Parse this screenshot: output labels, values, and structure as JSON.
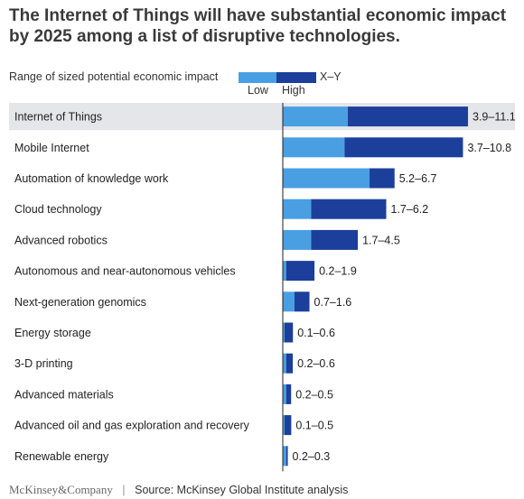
{
  "header": {
    "title": "The Internet of Things will have substantial economic impact by 2025 among a list of disruptive technologies."
  },
  "legend": {
    "label": "Range of sized potential economic impact",
    "low": "Low",
    "high": "High",
    "range_label": "X–Y"
  },
  "footer": {
    "brand": "McKinsey&Company",
    "separator": "|",
    "source": "Source: McKinsey Global Institute analysis"
  },
  "colors": {
    "low": "#4a9fe3",
    "high": "#1b3f9a",
    "highlight_row": "#e5e6ea",
    "axis": "#222222"
  },
  "chart_data": {
    "type": "bar",
    "orientation": "horizontal",
    "stacked": true,
    "xlim": [
      0,
      11.5
    ],
    "grid": false,
    "legend_position": "top-left",
    "highlighted_category": "Internet of Things",
    "categories": [
      "Internet of Things",
      "Mobile Internet",
      "Automation of knowledge work",
      "Cloud technology",
      "Advanced robotics",
      "Autonomous and near-autonomous vehicles",
      "Next-generation genomics",
      "Energy storage",
      "3-D printing",
      "Advanced materials",
      "Advanced oil and gas exploration and recovery",
      "Renewable energy"
    ],
    "low": [
      3.9,
      3.7,
      5.2,
      1.7,
      1.7,
      0.2,
      0.7,
      0.1,
      0.2,
      0.2,
      0.1,
      0.2
    ],
    "high": [
      11.1,
      10.8,
      6.7,
      6.2,
      4.5,
      1.9,
      1.6,
      0.6,
      0.6,
      0.5,
      0.5,
      0.3
    ],
    "value_labels": [
      "3.9–11.1",
      "3.7–10.8",
      "5.2–6.7",
      "1.7–6.2",
      "1.7–4.5",
      "0.2–1.9",
      "0.7–1.6",
      "0.1–0.6",
      "0.2–0.6",
      "0.2–0.5",
      "0.1–0.5",
      "0.2–0.3"
    ]
  }
}
